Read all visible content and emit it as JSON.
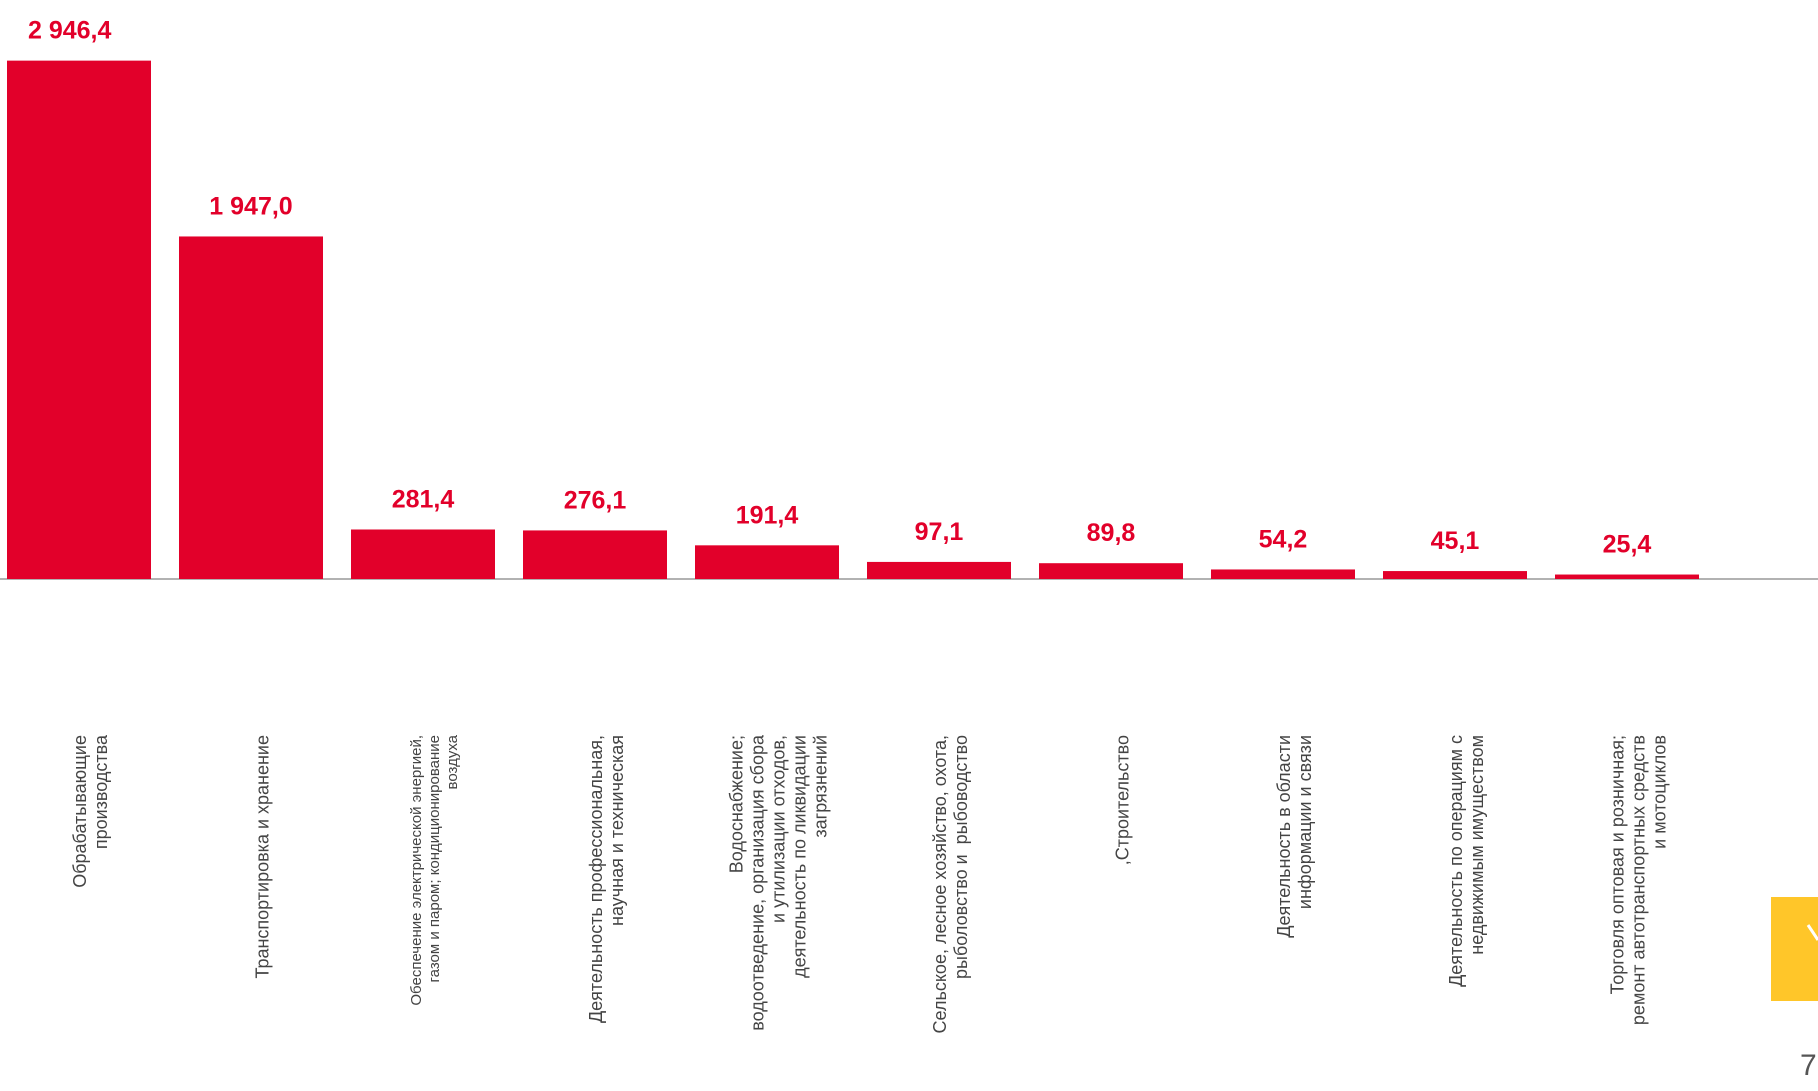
{
  "chart_data": {
    "type": "bar",
    "categories": [
      "Обрабатывающие\nпроизводства",
      "Транспортировка и хранение",
      "Обеспечение электрической энергией,\nгазом и паром; кондиционирование\nвоздуха",
      "Деятельность профессиональная,\nнаучная и техническая",
      "Водоснабжение;\nводоотведение, организация сбора\nи утилизации отходов,\nдеятельность по ликвидации\nзагрязнений",
      "Сельское, лесное хозяйство, охота,\nрыболовство и  рыбоводство",
      ",Строительство",
      "Деятельность в области\nинформации и связи",
      "Деятельность по операциям с\nнедвижимым имуществом",
      "Торговля оптовая и розничная;\nремонт автотранспортных средств\nи мотоциклов"
    ],
    "values": [
      2946.4,
      1947.0,
      281.4,
      276.1,
      191.4,
      97.1,
      89.8,
      54.2,
      45.1,
      25.4
    ],
    "value_labels": [
      "2 946,4",
      "1 947,0",
      "281,4",
      "276,1",
      "191,4",
      "97,1",
      "89,8",
      "54,2",
      "45,1",
      "25,4"
    ],
    "color": "#e2002a",
    "ylim": [
      0,
      2950
    ]
  },
  "page_number": "7"
}
